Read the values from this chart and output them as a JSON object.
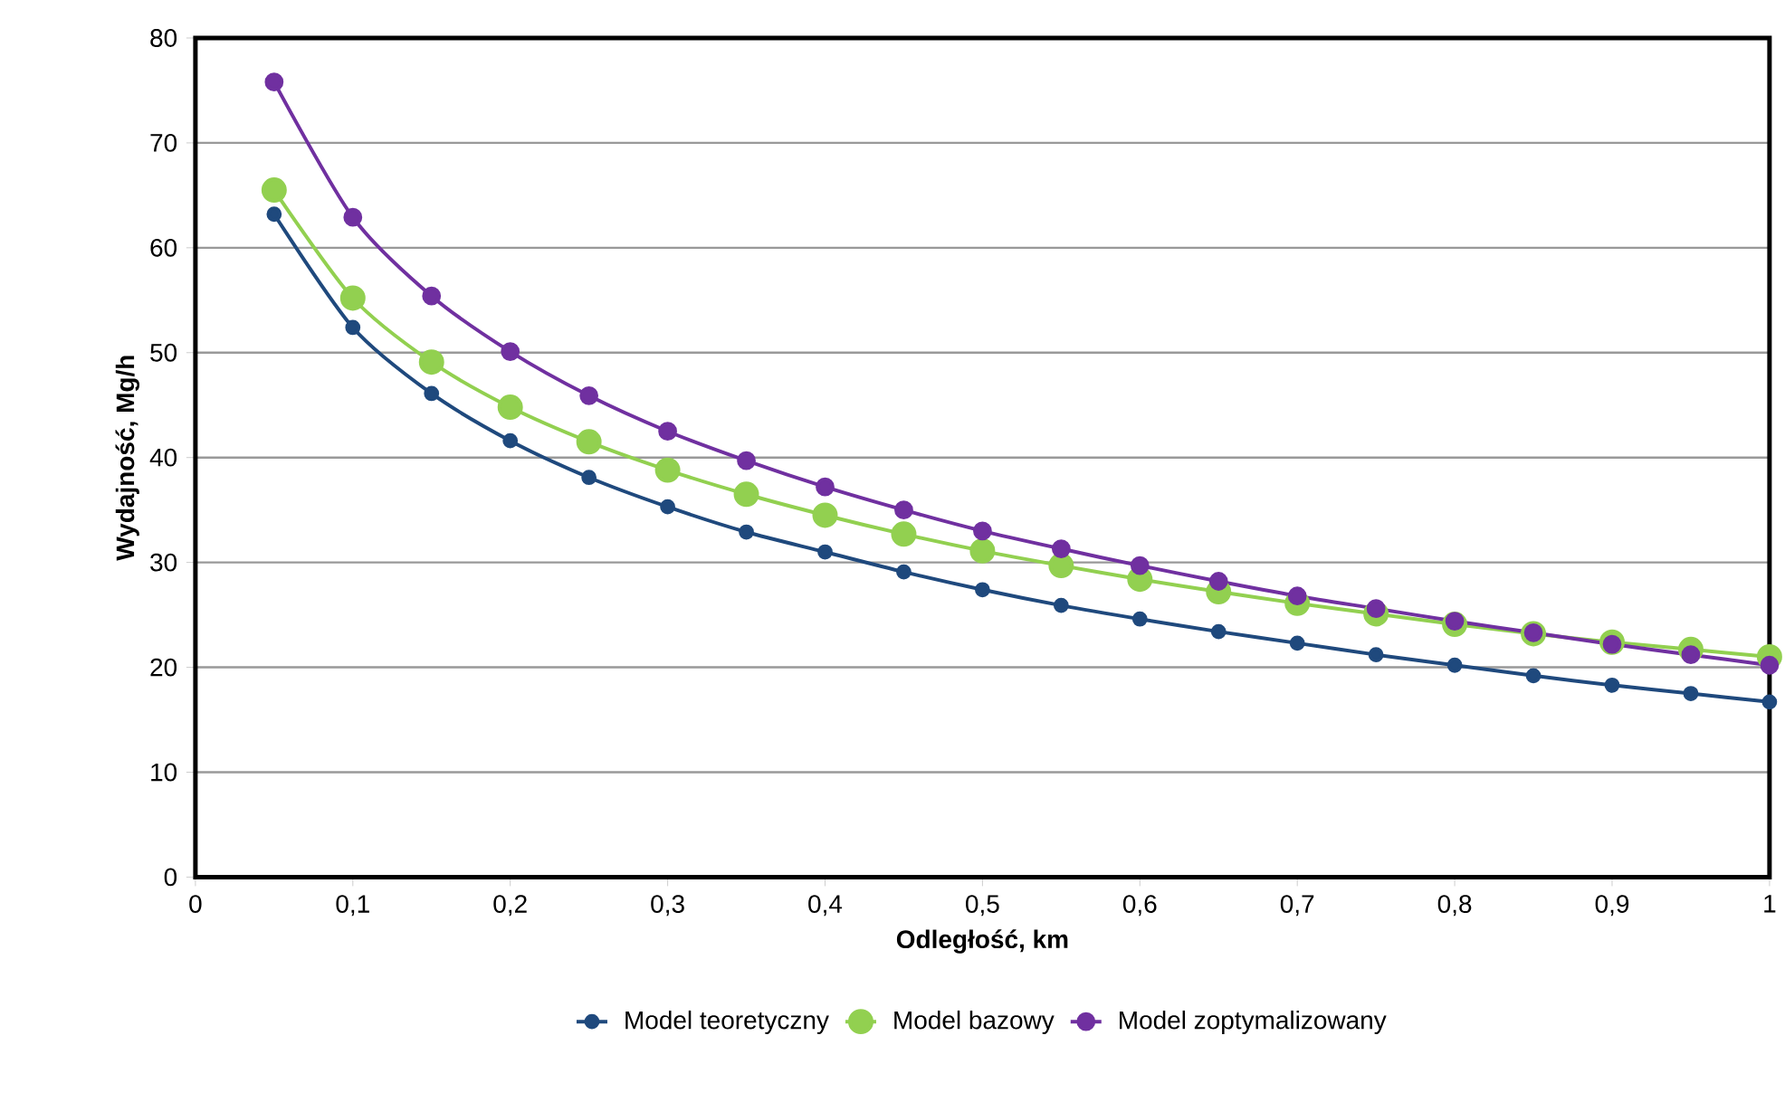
{
  "chart_data": {
    "type": "line",
    "xlabel": "Odległość, km",
    "ylabel": "Wydajność, Mg/h",
    "x": [
      0.05,
      0.1,
      0.15,
      0.2,
      0.25,
      0.3,
      0.35,
      0.4,
      0.45,
      0.5,
      0.55,
      0.6,
      0.65,
      0.7,
      0.75,
      0.8,
      0.85,
      0.9,
      0.95,
      1.0
    ],
    "series": [
      {
        "name": "Model teoretyczny",
        "color": "#1f497d",
        "values": [
          63.2,
          52.4,
          46.1,
          41.6,
          38.1,
          35.3,
          32.9,
          31.0,
          29.1,
          27.4,
          25.9,
          24.6,
          23.4,
          22.3,
          21.2,
          20.2,
          19.2,
          18.3,
          17.5,
          16.7
        ]
      },
      {
        "name": "Model bazowy",
        "color": "#92d050",
        "values": [
          65.5,
          55.2,
          49.1,
          44.8,
          41.5,
          38.8,
          36.5,
          34.5,
          32.7,
          31.1,
          29.7,
          28.4,
          27.2,
          26.1,
          25.1,
          24.1,
          23.2,
          22.4,
          21.7,
          21.0
        ]
      },
      {
        "name": "Model zoptymalizowany",
        "color": "#7030a0",
        "values": [
          75.8,
          62.9,
          55.4,
          50.1,
          45.9,
          42.5,
          39.7,
          37.2,
          35.0,
          33.0,
          31.3,
          29.7,
          28.2,
          26.8,
          25.6,
          24.4,
          23.3,
          22.2,
          21.2,
          20.2
        ]
      }
    ],
    "xlim": [
      0,
      1
    ],
    "ylim": [
      0,
      80
    ],
    "xticks": [
      0,
      {
        "value": 0.1,
        "label": "0,1"
      },
      {
        "value": 0.2,
        "label": "0,2"
      },
      {
        "value": 0.3,
        "label": "0,3"
      },
      {
        "value": 0.4,
        "label": "0,4"
      },
      {
        "value": 0.5,
        "label": "0,5"
      },
      {
        "value": 0.6,
        "label": "0,6"
      },
      {
        "value": 0.7,
        "label": "0,7"
      },
      {
        "value": 0.8,
        "label": "0,8"
      },
      {
        "value": 0.9,
        "label": "0,9"
      },
      1
    ],
    "yticks": [
      0,
      10,
      20,
      30,
      40,
      50,
      60,
      70,
      80
    ],
    "grid": "y",
    "legend": "bottom",
    "marker": "circle"
  }
}
